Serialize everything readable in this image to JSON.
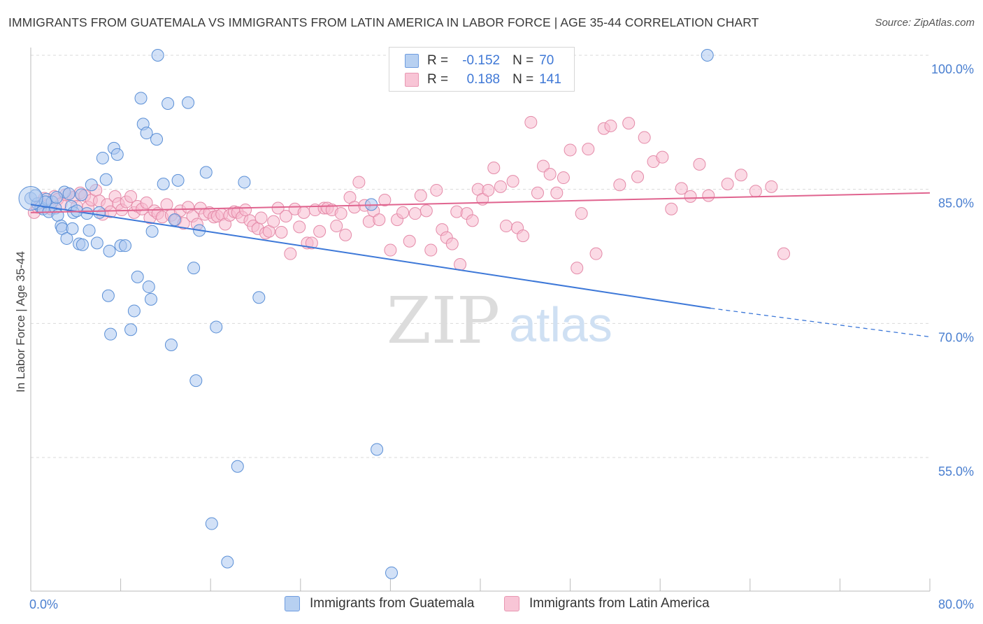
{
  "title": "IMMIGRANTS FROM GUATEMALA VS IMMIGRANTS FROM LATIN AMERICA IN LABOR FORCE | AGE 35-44 CORRELATION CHART",
  "source": "Source: ZipAtlas.com",
  "watermark": {
    "zip": "ZIP",
    "atlas": "atlas"
  },
  "legend": {
    "rows": [
      {
        "r_label": "R =",
        "r_value": "-0.152",
        "n_label": "N =",
        "n_value": "70"
      },
      {
        "r_label": "R =",
        "r_value": "0.188",
        "n_label": "N =",
        "n_value": "141"
      }
    ]
  },
  "colors": {
    "blue_fill": "#adc9f0",
    "blue_stroke": "#5a8fd6",
    "blue_line": "#3d78d8",
    "pink_fill": "#f7bcd0",
    "pink_stroke": "#e48aa8",
    "pink_line": "#e0648f",
    "axis_text": "#4a7fd0",
    "grid": "#d9d9d9"
  },
  "chart_data": {
    "type": "scatter",
    "title": "IMMIGRANTS FROM GUATEMALA VS IMMIGRANTS FROM LATIN AMERICA IN LABOR FORCE | AGE 35-44 CORRELATION CHART",
    "xlabel": "",
    "ylabel": "In Labor Force | Age 35-44",
    "xlim": [
      0,
      80
    ],
    "ylim": [
      40,
      102
    ],
    "x_tick_labels": [
      {
        "value": 0,
        "label": "0.0%"
      },
      {
        "value": 80,
        "label": "80.0%"
      }
    ],
    "y_tick_labels": [
      {
        "value": 100,
        "label": "100.0%"
      },
      {
        "value": 85,
        "label": "85.0%"
      },
      {
        "value": 70,
        "label": "70.0%"
      },
      {
        "value": 55,
        "label": "55.0%"
      }
    ],
    "grid": true,
    "legend_position": "top-center",
    "series": [
      {
        "name": "Immigrants from Guatemala",
        "color": "#adc9f0",
        "trend": {
          "x": [
            0,
            60.5
          ],
          "y": [
            83.3,
            71.7
          ],
          "extends_dashed_to": [
            80,
            68.5
          ]
        },
        "points": [
          [
            0.0,
            84.0
          ],
          [
            0.6,
            83.4
          ],
          [
            0.9,
            83.0
          ],
          [
            1.1,
            82.8
          ],
          [
            1.4,
            83.9
          ],
          [
            1.6,
            82.5
          ],
          [
            1.9,
            83.6
          ],
          [
            2.2,
            82.9
          ],
          [
            2.4,
            82.1
          ],
          [
            2.7,
            80.9
          ],
          [
            2.8,
            80.6
          ],
          [
            3.0,
            84.7
          ],
          [
            3.2,
            79.5
          ],
          [
            3.4,
            84.5
          ],
          [
            3.6,
            83.1
          ],
          [
            3.8,
            82.4
          ],
          [
            4.1,
            82.6
          ],
          [
            4.3,
            78.9
          ],
          [
            4.5,
            84.4
          ],
          [
            4.6,
            78.8
          ],
          [
            5.0,
            82.3
          ],
          [
            5.2,
            80.4
          ],
          [
            5.4,
            85.5
          ],
          [
            5.9,
            79.0
          ],
          [
            6.1,
            82.4
          ],
          [
            6.4,
            88.5
          ],
          [
            6.7,
            86.1
          ],
          [
            6.9,
            73.1
          ],
          [
            7.0,
            78.1
          ],
          [
            7.1,
            68.8
          ],
          [
            7.4,
            89.6
          ],
          [
            7.7,
            88.9
          ],
          [
            8.0,
            78.7
          ],
          [
            8.4,
            78.7
          ],
          [
            8.9,
            69.3
          ],
          [
            9.2,
            71.4
          ],
          [
            9.5,
            75.2
          ],
          [
            9.8,
            95.2
          ],
          [
            10.0,
            92.3
          ],
          [
            10.3,
            91.3
          ],
          [
            10.5,
            74.1
          ],
          [
            10.7,
            72.7
          ],
          [
            10.8,
            80.3
          ],
          [
            11.2,
            90.6
          ],
          [
            11.8,
            85.6
          ],
          [
            12.2,
            94.6
          ],
          [
            12.5,
            67.6
          ],
          [
            12.8,
            81.6
          ],
          [
            13.1,
            86.0
          ],
          [
            14.0,
            94.7
          ],
          [
            14.5,
            76.2
          ],
          [
            14.7,
            63.6
          ],
          [
            15.0,
            80.4
          ],
          [
            15.6,
            86.9
          ],
          [
            16.1,
            47.6
          ],
          [
            16.5,
            69.6
          ],
          [
            17.5,
            43.3
          ],
          [
            18.4,
            54.0
          ],
          [
            19.0,
            85.8
          ],
          [
            20.3,
            72.9
          ],
          [
            30.3,
            83.3
          ],
          [
            30.8,
            55.9
          ],
          [
            32.1,
            42.1
          ],
          [
            37.2,
            100.0
          ],
          [
            60.2,
            100.0
          ],
          [
            11.3,
            100.0
          ],
          [
            2.3,
            84.1
          ],
          [
            1.3,
            83.6
          ],
          [
            0.4,
            84.3
          ],
          [
            3.7,
            80.6
          ]
        ]
      },
      {
        "name": "Immigrants from Latin America",
        "color": "#f7bcd0",
        "trend": {
          "x": [
            0,
            80
          ],
          "y": [
            82.4,
            84.6
          ]
        },
        "points": [
          [
            0.3,
            82.4
          ],
          [
            0.6,
            83.0
          ],
          [
            0.9,
            83.5
          ],
          [
            1.2,
            84.0
          ],
          [
            1.5,
            83.2
          ],
          [
            1.8,
            82.8
          ],
          [
            2.1,
            84.2
          ],
          [
            2.4,
            83.9
          ],
          [
            2.7,
            83.4
          ],
          [
            3.1,
            84.4
          ],
          [
            3.4,
            84.5
          ],
          [
            3.8,
            84.1
          ],
          [
            4.1,
            83.1
          ],
          [
            4.4,
            84.6
          ],
          [
            4.8,
            84.3
          ],
          [
            5.1,
            83.0
          ],
          [
            5.4,
            83.8
          ],
          [
            5.8,
            84.9
          ],
          [
            6.1,
            83.7
          ],
          [
            6.4,
            82.2
          ],
          [
            6.8,
            83.3
          ],
          [
            7.1,
            82.5
          ],
          [
            7.5,
            84.2
          ],
          [
            7.8,
            83.4
          ],
          [
            8.1,
            82.7
          ],
          [
            8.5,
            83.6
          ],
          [
            8.9,
            84.2
          ],
          [
            9.2,
            82.4
          ],
          [
            9.5,
            83.1
          ],
          [
            9.9,
            82.8
          ],
          [
            10.3,
            83.5
          ],
          [
            10.6,
            81.8
          ],
          [
            11.0,
            82.6
          ],
          [
            11.3,
            82.3
          ],
          [
            11.7,
            81.9
          ],
          [
            12.1,
            83.3
          ],
          [
            12.5,
            82.1
          ],
          [
            12.9,
            81.6
          ],
          [
            13.3,
            82.6
          ],
          [
            13.6,
            81.2
          ],
          [
            14.0,
            83.0
          ],
          [
            14.4,
            82.0
          ],
          [
            14.8,
            81.1
          ],
          [
            15.1,
            82.9
          ],
          [
            15.5,
            82.2
          ],
          [
            15.9,
            82.4
          ],
          [
            16.3,
            81.9
          ],
          [
            16.6,
            82.0
          ],
          [
            17.0,
            82.2
          ],
          [
            17.3,
            81.1
          ],
          [
            17.7,
            82.1
          ],
          [
            18.1,
            82.5
          ],
          [
            18.4,
            82.4
          ],
          [
            18.8,
            81.9
          ],
          [
            19.1,
            82.7
          ],
          [
            19.5,
            81.5
          ],
          [
            19.8,
            80.9
          ],
          [
            20.2,
            80.6
          ],
          [
            20.5,
            81.8
          ],
          [
            20.9,
            80.1
          ],
          [
            21.2,
            80.3
          ],
          [
            21.6,
            81.4
          ],
          [
            22.0,
            82.9
          ],
          [
            22.3,
            80.2
          ],
          [
            22.7,
            82.0
          ],
          [
            23.1,
            77.8
          ],
          [
            23.5,
            82.8
          ],
          [
            23.9,
            80.8
          ],
          [
            24.3,
            82.4
          ],
          [
            24.6,
            79.0
          ],
          [
            25.0,
            79.0
          ],
          [
            25.3,
            82.7
          ],
          [
            25.7,
            80.3
          ],
          [
            26.1,
            82.9
          ],
          [
            26.4,
            82.9
          ],
          [
            26.8,
            82.7
          ],
          [
            27.2,
            80.9
          ],
          [
            27.6,
            82.3
          ],
          [
            28.0,
            79.9
          ],
          [
            28.4,
            84.1
          ],
          [
            28.8,
            83.0
          ],
          [
            29.2,
            85.8
          ],
          [
            29.7,
            83.2
          ],
          [
            30.1,
            81.4
          ],
          [
            30.5,
            82.6
          ],
          [
            31.0,
            81.6
          ],
          [
            31.5,
            83.8
          ],
          [
            32.0,
            78.2
          ],
          [
            32.6,
            81.6
          ],
          [
            33.1,
            82.4
          ],
          [
            33.7,
            79.2
          ],
          [
            34.2,
            82.3
          ],
          [
            34.7,
            84.3
          ],
          [
            35.2,
            82.6
          ],
          [
            35.6,
            78.2
          ],
          [
            36.1,
            84.9
          ],
          [
            36.6,
            80.5
          ],
          [
            37.0,
            79.6
          ],
          [
            37.5,
            78.9
          ],
          [
            37.9,
            82.5
          ],
          [
            38.2,
            76.6
          ],
          [
            38.8,
            82.3
          ],
          [
            39.3,
            81.5
          ],
          [
            39.8,
            85.0
          ],
          [
            40.2,
            83.9
          ],
          [
            40.7,
            84.9
          ],
          [
            41.2,
            87.4
          ],
          [
            41.8,
            85.3
          ],
          [
            42.3,
            80.9
          ],
          [
            42.9,
            85.9
          ],
          [
            43.3,
            80.7
          ],
          [
            43.8,
            79.8
          ],
          [
            44.5,
            92.5
          ],
          [
            45.1,
            84.6
          ],
          [
            45.6,
            87.6
          ],
          [
            46.2,
            86.7
          ],
          [
            46.8,
            84.6
          ],
          [
            47.4,
            86.3
          ],
          [
            48.0,
            89.4
          ],
          [
            48.6,
            76.2
          ],
          [
            49.0,
            82.3
          ],
          [
            49.6,
            89.5
          ],
          [
            50.3,
            77.8
          ],
          [
            51.0,
            91.8
          ],
          [
            51.6,
            92.1
          ],
          [
            52.4,
            85.5
          ],
          [
            53.2,
            92.4
          ],
          [
            54.0,
            86.4
          ],
          [
            54.6,
            90.8
          ],
          [
            55.4,
            88.1
          ],
          [
            56.2,
            88.6
          ],
          [
            57.0,
            82.8
          ],
          [
            57.9,
            85.1
          ],
          [
            58.7,
            84.2
          ],
          [
            59.5,
            87.8
          ],
          [
            60.3,
            84.3
          ],
          [
            62.0,
            85.6
          ],
          [
            63.2,
            86.6
          ],
          [
            64.5,
            84.8
          ],
          [
            65.9,
            85.3
          ],
          [
            67.0,
            77.8
          ]
        ]
      }
    ]
  },
  "bottom_legend": {
    "items": [
      {
        "label": "Immigrants from Guatemala"
      },
      {
        "label": "Immigrants from Latin America"
      }
    ]
  }
}
